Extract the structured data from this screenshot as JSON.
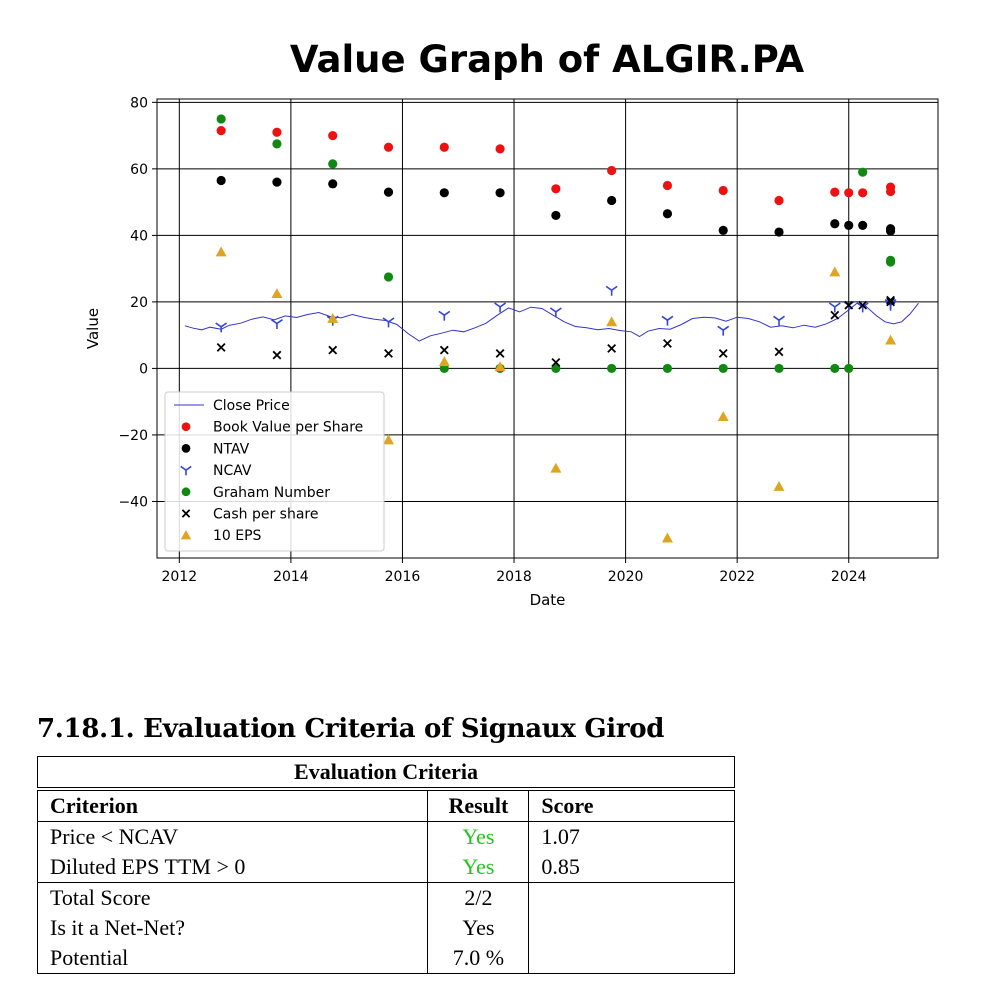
{
  "chart_data": {
    "type": "scatter",
    "title": "Value Graph of ALGIR.PA",
    "xlabel": "Date",
    "ylabel": "Value",
    "xlim": [
      2011.6,
      2025.6
    ],
    "ylim": [
      -57,
      81
    ],
    "x_ticks": [
      2012,
      2014,
      2016,
      2018,
      2020,
      2022,
      2024
    ],
    "y_ticks": [
      -40,
      -20,
      0,
      20,
      40,
      60,
      80
    ],
    "y_tick_labels": [
      "−40",
      "−20",
      "0",
      "20",
      "40",
      "60",
      "80"
    ],
    "grid": true,
    "legend_position": "lower-left",
    "series": [
      {
        "name": "Close Price",
        "kind": "line",
        "color": "#3333cc",
        "points": [
          [
            2012.1,
            12.8
          ],
          [
            2012.25,
            12.1
          ],
          [
            2012.4,
            11.6
          ],
          [
            2012.55,
            12.4
          ],
          [
            2012.75,
            11.8
          ],
          [
            2012.9,
            13.0
          ],
          [
            2013.1,
            13.6
          ],
          [
            2013.3,
            14.8
          ],
          [
            2013.5,
            15.5
          ],
          [
            2013.7,
            14.6
          ],
          [
            2013.9,
            15.8
          ],
          [
            2014.1,
            15.3
          ],
          [
            2014.3,
            16.2
          ],
          [
            2014.5,
            16.8
          ],
          [
            2014.7,
            15.6
          ],
          [
            2014.9,
            15.2
          ],
          [
            2015.1,
            16.2
          ],
          [
            2015.3,
            15.4
          ],
          [
            2015.5,
            14.8
          ],
          [
            2015.7,
            14.4
          ],
          [
            2015.9,
            13.2
          ],
          [
            2016.1,
            10.5
          ],
          [
            2016.3,
            8.2
          ],
          [
            2016.5,
            9.8
          ],
          [
            2016.7,
            10.6
          ],
          [
            2016.9,
            11.5
          ],
          [
            2017.1,
            11.0
          ],
          [
            2017.3,
            12.2
          ],
          [
            2017.5,
            13.6
          ],
          [
            2017.7,
            16.0
          ],
          [
            2017.9,
            18.2
          ],
          [
            2018.1,
            17.0
          ],
          [
            2018.3,
            18.4
          ],
          [
            2018.5,
            18.0
          ],
          [
            2018.7,
            16.0
          ],
          [
            2018.9,
            14.0
          ],
          [
            2019.1,
            12.6
          ],
          [
            2019.3,
            12.2
          ],
          [
            2019.5,
            11.6
          ],
          [
            2019.7,
            12.0
          ],
          [
            2019.9,
            11.4
          ],
          [
            2020.1,
            11.0
          ],
          [
            2020.25,
            9.6
          ],
          [
            2020.4,
            11.2
          ],
          [
            2020.6,
            12.0
          ],
          [
            2020.8,
            11.8
          ],
          [
            2021.0,
            13.2
          ],
          [
            2021.2,
            15.0
          ],
          [
            2021.4,
            15.4
          ],
          [
            2021.6,
            15.2
          ],
          [
            2021.8,
            14.2
          ],
          [
            2022.0,
            15.4
          ],
          [
            2022.2,
            15.0
          ],
          [
            2022.4,
            14.0
          ],
          [
            2022.6,
            12.4
          ],
          [
            2022.8,
            12.8
          ],
          [
            2023.0,
            12.2
          ],
          [
            2023.2,
            13.0
          ],
          [
            2023.4,
            12.4
          ],
          [
            2023.6,
            13.4
          ],
          [
            2023.8,
            15.0
          ],
          [
            2024.0,
            17.6
          ],
          [
            2024.15,
            19.6
          ],
          [
            2024.3,
            18.8
          ],
          [
            2024.5,
            15.8
          ],
          [
            2024.65,
            14.0
          ],
          [
            2024.8,
            13.4
          ],
          [
            2024.95,
            14.0
          ],
          [
            2025.1,
            16.4
          ],
          [
            2025.25,
            19.6
          ]
        ]
      },
      {
        "name": "Book Value per Share",
        "kind": "circle",
        "color": "#ee1111",
        "points": [
          [
            2012.75,
            71.5
          ],
          [
            2013.75,
            71
          ],
          [
            2014.75,
            70
          ],
          [
            2015.75,
            66.5
          ],
          [
            2016.75,
            66.5
          ],
          [
            2017.75,
            66
          ],
          [
            2018.75,
            54
          ],
          [
            2019.75,
            59.5
          ],
          [
            2020.75,
            55
          ],
          [
            2021.75,
            53.5
          ],
          [
            2022.75,
            50.5
          ],
          [
            2023.75,
            53
          ],
          [
            2024.0,
            52.8
          ],
          [
            2024.25,
            52.8
          ],
          [
            2024.75,
            54.5
          ],
          [
            2024.75,
            53.2
          ]
        ]
      },
      {
        "name": "NTAV",
        "kind": "circle",
        "color": "#000000",
        "points": [
          [
            2012.75,
            56.5
          ],
          [
            2013.75,
            56
          ],
          [
            2014.75,
            55.5
          ],
          [
            2015.75,
            53
          ],
          [
            2016.75,
            52.8
          ],
          [
            2017.75,
            52.8
          ],
          [
            2018.75,
            46
          ],
          [
            2019.75,
            50.5
          ],
          [
            2020.75,
            46.5
          ],
          [
            2021.75,
            41.5
          ],
          [
            2022.75,
            41
          ],
          [
            2023.75,
            43.5
          ],
          [
            2024.0,
            43
          ],
          [
            2024.25,
            43
          ],
          [
            2024.75,
            42
          ],
          [
            2024.75,
            41.3
          ]
        ]
      },
      {
        "name": "NCAV",
        "kind": "tri_down",
        "color": "#3344dd",
        "points": [
          [
            2012.75,
            12.5
          ],
          [
            2013.75,
            13.5
          ],
          [
            2014.75,
            14.5
          ],
          [
            2015.75,
            14
          ],
          [
            2016.75,
            16
          ],
          [
            2017.75,
            18.5
          ],
          [
            2018.75,
            17
          ],
          [
            2019.75,
            23.5
          ],
          [
            2020.75,
            14.5
          ],
          [
            2021.75,
            11.5
          ],
          [
            2022.75,
            14.5
          ],
          [
            2023.75,
            18.5
          ],
          [
            2024.0,
            19
          ],
          [
            2024.25,
            18.5
          ],
          [
            2024.75,
            19.5
          ],
          [
            2024.75,
            19
          ]
        ]
      },
      {
        "name": "Graham Number",
        "kind": "circle",
        "color": "#118811",
        "points": [
          [
            2012.75,
            75
          ],
          [
            2013.75,
            67.5
          ],
          [
            2014.75,
            61.5
          ],
          [
            2015.75,
            27.5
          ],
          [
            2016.75,
            0
          ],
          [
            2017.75,
            0
          ],
          [
            2018.75,
            0
          ],
          [
            2019.75,
            0
          ],
          [
            2020.75,
            0
          ],
          [
            2021.75,
            0
          ],
          [
            2022.75,
            0
          ],
          [
            2023.75,
            0
          ],
          [
            2024.0,
            0
          ],
          [
            2024.25,
            59
          ],
          [
            2024.75,
            32.5
          ],
          [
            2024.75,
            32
          ]
        ]
      },
      {
        "name": "Cash per share",
        "kind": "x",
        "color": "#000000",
        "points": [
          [
            2012.75,
            6.3
          ],
          [
            2013.75,
            4
          ],
          [
            2014.75,
            5.5
          ],
          [
            2015.75,
            4.5
          ],
          [
            2016.75,
            5.5
          ],
          [
            2017.75,
            4.5
          ],
          [
            2018.75,
            1.8
          ],
          [
            2019.75,
            6
          ],
          [
            2020.75,
            7.5
          ],
          [
            2021.75,
            4.5
          ],
          [
            2022.75,
            5
          ],
          [
            2023.75,
            16
          ],
          [
            2024.0,
            19
          ],
          [
            2024.25,
            19
          ],
          [
            2024.75,
            20.5
          ],
          [
            2024.75,
            20
          ]
        ]
      },
      {
        "name": "10 EPS",
        "kind": "triangle",
        "color": "#dda522",
        "points": [
          [
            2012.75,
            35
          ],
          [
            2013.75,
            22.5
          ],
          [
            2014.75,
            15
          ],
          [
            2015.75,
            -21.5
          ],
          [
            2016.75,
            2
          ],
          [
            2017.75,
            0.5
          ],
          [
            2018.75,
            -30
          ],
          [
            2019.75,
            14
          ],
          [
            2020.75,
            -51
          ],
          [
            2021.75,
            -14.5
          ],
          [
            2022.75,
            -35.5
          ],
          [
            2023.75,
            29
          ],
          [
            2024.75,
            8.5
          ]
        ]
      }
    ]
  },
  "section": {
    "heading": "7.18.1. Evaluation Criteria of Signaux Girod"
  },
  "table": {
    "caption": "Evaluation Criteria",
    "headers": [
      "Criterion",
      "Result",
      "Score"
    ],
    "rows": [
      {
        "criterion": "Price < NCAV",
        "result": "Yes",
        "score": "1.07"
      },
      {
        "criterion": "Diluted EPS TTM > 0",
        "result": "Yes",
        "score": "0.85"
      }
    ],
    "summary": [
      {
        "label": "Total Score",
        "value": "2/2"
      },
      {
        "label": "Is it a Net-Net?",
        "value": "Yes"
      },
      {
        "label": "Potential",
        "value": "7.0 %"
      }
    ],
    "yes_color": "#22c51f"
  }
}
